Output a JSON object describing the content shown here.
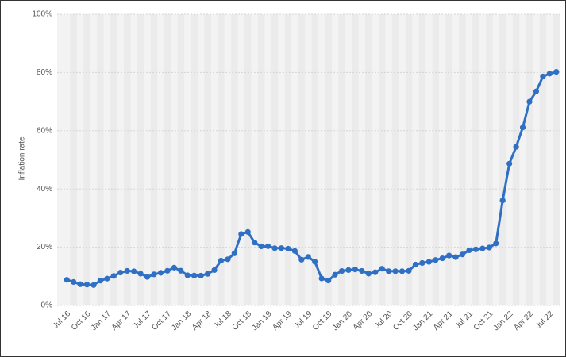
{
  "chart_data": {
    "type": "line",
    "y_label": "Inflation rate",
    "categories": [
      "Jul 16",
      null,
      null,
      "Oct 16",
      null,
      null,
      "Jan 17",
      null,
      null,
      "Apr 17",
      null,
      null,
      "Jul 17",
      null,
      null,
      "Oct 17",
      null,
      null,
      "Jan 18",
      null,
      null,
      "Apr 18",
      null,
      null,
      "Jul 18",
      null,
      null,
      "Oct 18",
      null,
      null,
      "Jan 19",
      null,
      null,
      "Apr 19",
      null,
      null,
      "Jul 19",
      null,
      null,
      "Oct 19",
      null,
      null,
      "Jan 20",
      null,
      null,
      "Apr 20",
      null,
      null,
      "Jul 20",
      null,
      null,
      "Oct 20",
      null,
      null,
      "Jan 21",
      null,
      null,
      "Apr 21",
      null,
      null,
      "Jul 21",
      null,
      null,
      "Oct 21",
      null,
      null,
      "Jan 22",
      null,
      null,
      "Apr 22",
      null,
      null,
      "Jul 22",
      null
    ],
    "series": [
      {
        "color": "#2f6fc4",
        "values": [
          8.79,
          8.05,
          7.28,
          7.16,
          7.0,
          8.53,
          9.22,
          10.13,
          11.29,
          11.87,
          11.72,
          10.9,
          9.79,
          10.68,
          11.2,
          11.9,
          12.98,
          11.92,
          10.35,
          10.26,
          10.23,
          10.85,
          12.15,
          15.39,
          15.85,
          17.9,
          24.52,
          25.24,
          21.62,
          20.3,
          20.35,
          19.67,
          19.71,
          19.5,
          18.71,
          15.72,
          16.65,
          15.01,
          9.26,
          8.55,
          10.56,
          11.84,
          12.15,
          12.37,
          11.86,
          10.94,
          11.39,
          12.62,
          11.76,
          11.77,
          11.75,
          11.89,
          14.03,
          14.6,
          14.97,
          15.61,
          16.19,
          17.14,
          16.59,
          17.53,
          18.95,
          19.25,
          19.58,
          19.89,
          21.31,
          36.08,
          48.69,
          54.44,
          61.14,
          69.97,
          73.5,
          78.62,
          79.6,
          80.21
        ]
      }
    ],
    "ylim": [
      0,
      100
    ],
    "yticks": [
      {
        "value": 0,
        "label": "0%"
      },
      {
        "value": 20,
        "label": "20%"
      },
      {
        "value": 40,
        "label": "40%"
      },
      {
        "value": 60,
        "label": "60%"
      },
      {
        "value": 80,
        "label": "80%"
      },
      {
        "value": 100,
        "label": "100%"
      }
    ],
    "grid": true
  }
}
